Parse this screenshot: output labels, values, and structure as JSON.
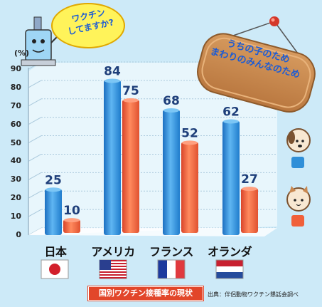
{
  "bubble_text": "ワクチン\nしてますか?",
  "sign_text": "うちの子のため\nまわりのみんなのため",
  "caption": "国別ワクチン接種率の現状",
  "source": "出典：伴侶動物ワクチン懇話会調べ",
  "colors": {
    "background": "#cdeaf8",
    "dog_series": "#2f8fd8",
    "cat_series": "#f0603a",
    "value_label": "#1f3f7a"
  },
  "icons": [
    "syringe-mascot-icon",
    "dog-icon",
    "cat-icon",
    "flag-japan-icon",
    "flag-usa-icon",
    "flag-france-icon",
    "flag-netherlands-icon",
    "wooden-sign-icon",
    "pushpin-icon"
  ],
  "chart_data": {
    "type": "bar",
    "title": "",
    "ylabel": "(%)",
    "ylim": [
      0,
      90
    ],
    "yticks": [
      0,
      10,
      20,
      30,
      40,
      50,
      60,
      70,
      80,
      90
    ],
    "categories": [
      "日本",
      "アメリカ",
      "フランス",
      "オランダ"
    ],
    "series": [
      {
        "values": [
          25,
          84,
          68,
          62
        ]
      },
      {
        "values": [
          10,
          75,
          52,
          27
        ]
      }
    ],
    "grid": true,
    "legend": "right (dog icon = blue, cat icon = red)"
  }
}
